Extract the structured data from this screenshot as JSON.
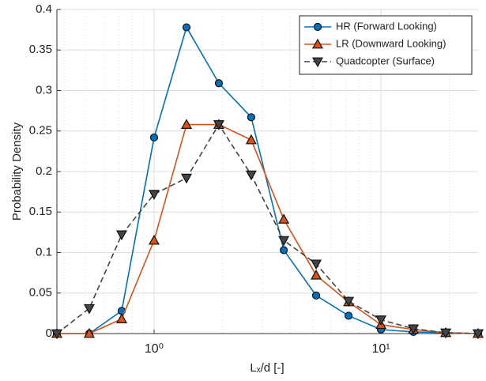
{
  "chart_data": {
    "type": "line",
    "xlabel": "Lₓ/d [-]",
    "ylabel": "Probability Density",
    "x": [
      0.373,
      0.518,
      0.72,
      1,
      1.39,
      1.93,
      2.68,
      3.73,
      5.18,
      7.2,
      10,
      13.9,
      19.3,
      26.8
    ],
    "series": [
      {
        "name": "HR (Forward Looking)",
        "color": "#0072bd",
        "marker": "circle",
        "dashed": false,
        "values": [
          0,
          0,
          0.028,
          0.242,
          0.378,
          0.309,
          0.267,
          0.103,
          0.047,
          0.022,
          0.005,
          0.002,
          0.001,
          0
        ]
      },
      {
        "name": "LR (Downward Looking)",
        "color": "#d95319",
        "marker": "triangle-up",
        "dashed": false,
        "values": [
          0,
          0,
          0.018,
          0.115,
          0.258,
          0.258,
          0.239,
          0.141,
          0.072,
          0.039,
          0.011,
          0.005,
          0.001,
          0
        ]
      },
      {
        "name": "Quadcopter (Surface)",
        "color": "#444444",
        "marker": "triangle-down",
        "dashed": true,
        "values": [
          0,
          0.031,
          0.122,
          0.172,
          0.192,
          0.258,
          0.196,
          0.115,
          0.086,
          0.04,
          0.017,
          0.006,
          0.001,
          0
        ]
      }
    ],
    "xscale": "log",
    "xlim": [
      0.373,
      26.8
    ],
    "xticks": [
      {
        "value": 1,
        "label": "10⁰"
      },
      {
        "value": 10,
        "label": "10¹"
      }
    ],
    "ylim": [
      0,
      0.4
    ],
    "yticks": [
      0,
      0.05,
      0.1,
      0.15,
      0.2,
      0.25,
      0.3,
      0.35,
      0.4
    ],
    "grid": true,
    "xminor_grid": true,
    "legend": "upper right"
  }
}
